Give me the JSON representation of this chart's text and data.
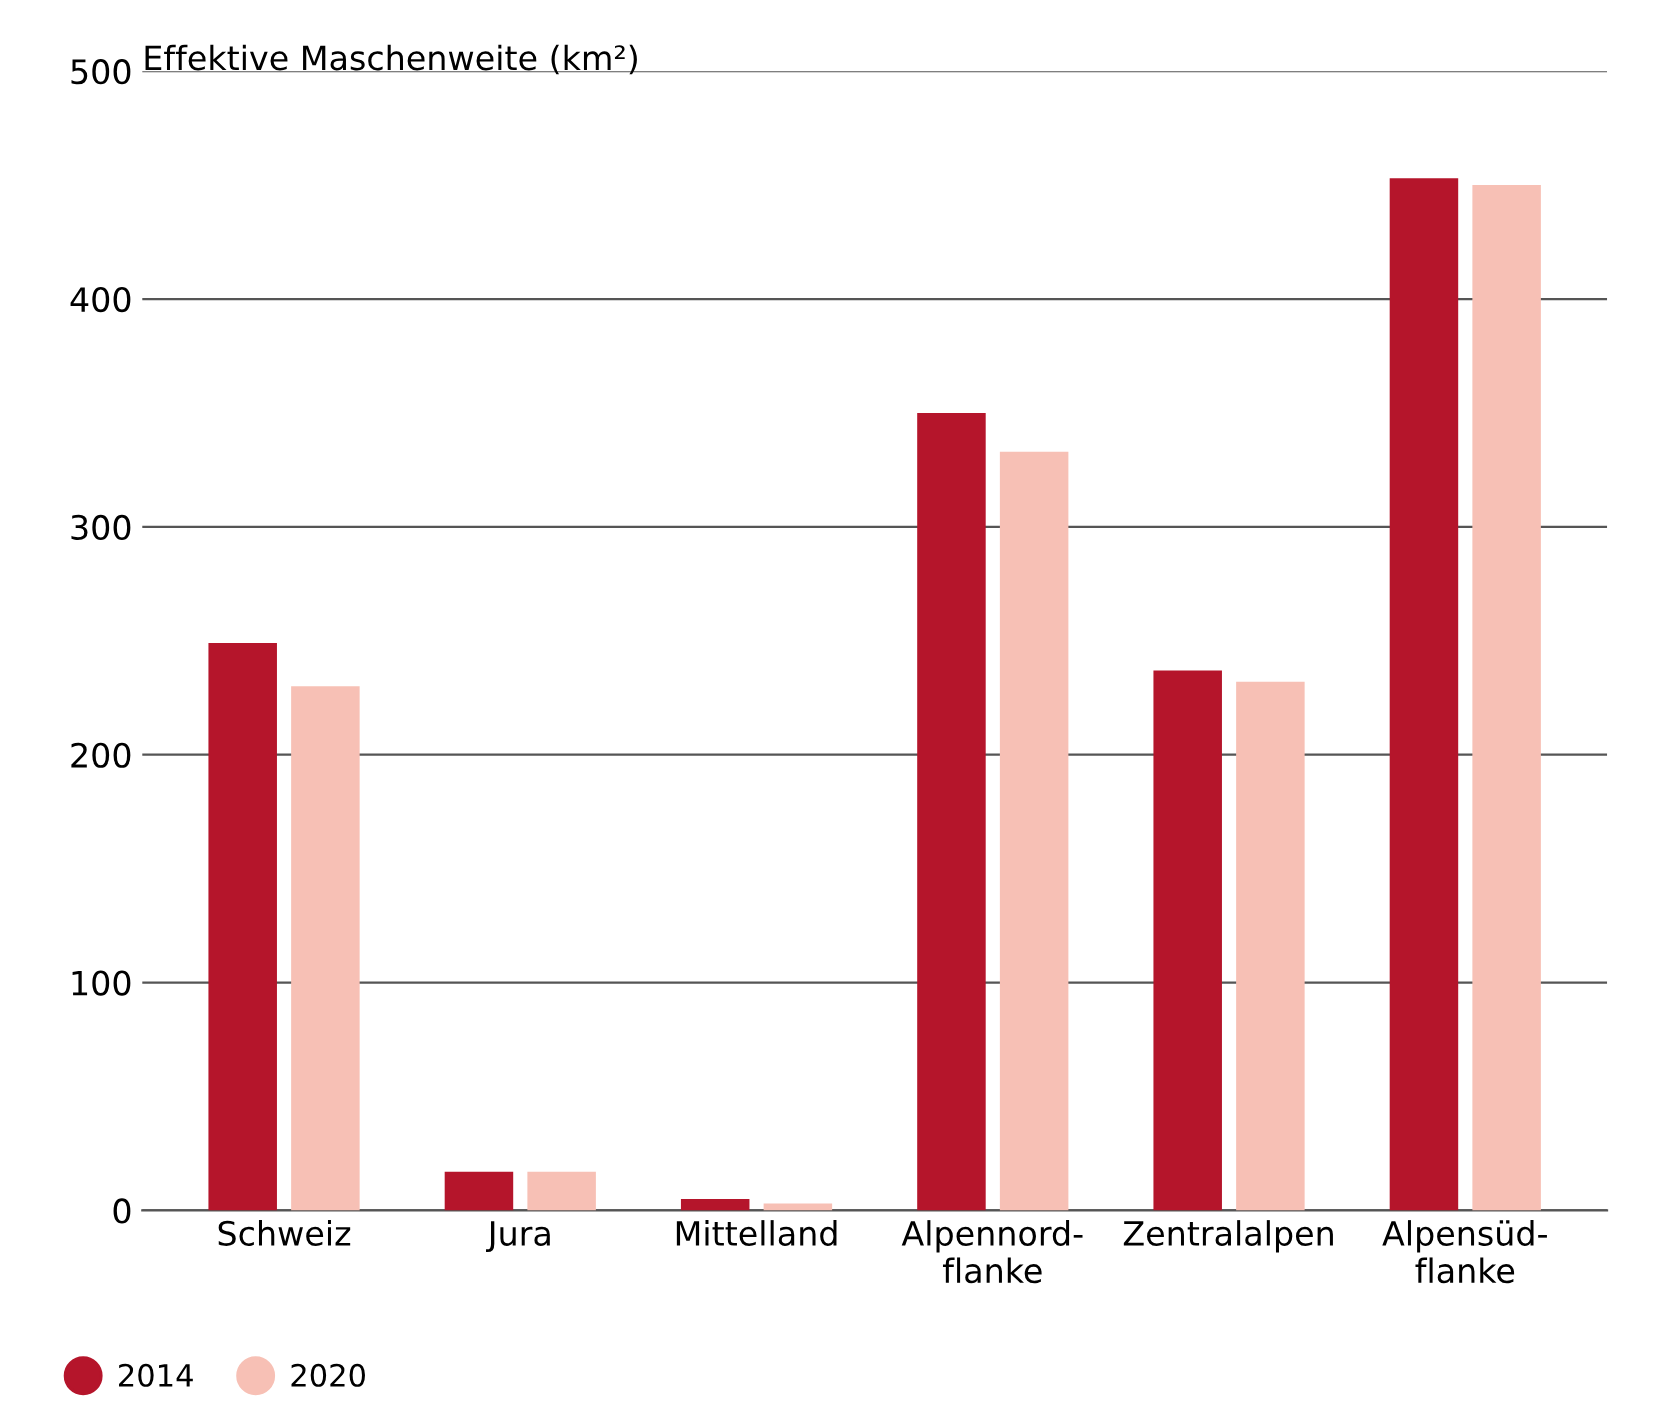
{
  "chart_data": {
    "type": "bar",
    "ylabel": "Effektive Maschenweite (km²)",
    "categories": [
      "Schweiz",
      "Jura",
      "Mittelland",
      "Alpennord-\nflanke",
      "Zentralalpen",
      "Alpensüd-\nflanke"
    ],
    "series": [
      {
        "name": "2014",
        "color": "#b5152b",
        "values": [
          249,
          17,
          5,
          350,
          237,
          453
        ]
      },
      {
        "name": "2020",
        "color": "#f7c0b5",
        "values": [
          230,
          17,
          3,
          333,
          232,
          450
        ]
      }
    ],
    "ylim": [
      0,
      500
    ],
    "yticks": [
      0,
      100,
      200,
      300,
      400,
      500
    ],
    "grid": "y",
    "legend": "bottom left"
  }
}
